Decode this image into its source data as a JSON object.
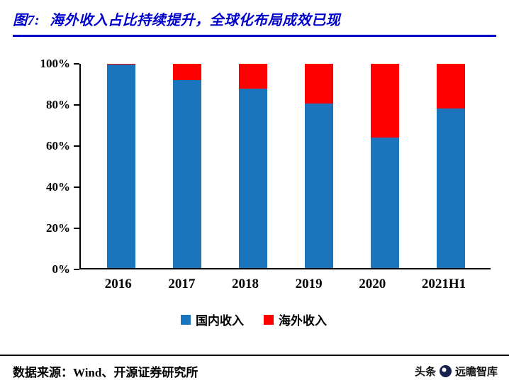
{
  "header": {
    "figure_label": "图7:",
    "title": "海外收入占比持续提升，全球化布局成效已现"
  },
  "chart_data": {
    "type": "bar",
    "stacked": true,
    "title": "图7: 海外收入占比持续提升，全球化布局成效已现",
    "categories": [
      "2016",
      "2017",
      "2018",
      "2019",
      "2020",
      "2021H1"
    ],
    "series": [
      {
        "name": "国内收入",
        "color": "#1B75BC",
        "values": [
          99.5,
          92,
          88,
          80.5,
          64,
          78
        ]
      },
      {
        "name": "海外收入",
        "color": "#FF0000",
        "values": [
          0.5,
          8,
          12,
          19.5,
          36,
          22
        ]
      }
    ],
    "unit": "%",
    "ylim": [
      0,
      100
    ],
    "yticks": [
      "0%",
      "20%",
      "40%",
      "60%",
      "80%",
      "100%"
    ],
    "grid": false,
    "legend_position": "bottom"
  },
  "footer": {
    "source": "数据来源：Wind、开源证券研究所",
    "watermark_prefix": "头条",
    "watermark_brand": "远瞻智库"
  },
  "colors": {
    "title_blue": "#0000CD",
    "domestic_blue": "#1B75BC",
    "overseas_red": "#FF0000",
    "axis_black": "#000000"
  }
}
